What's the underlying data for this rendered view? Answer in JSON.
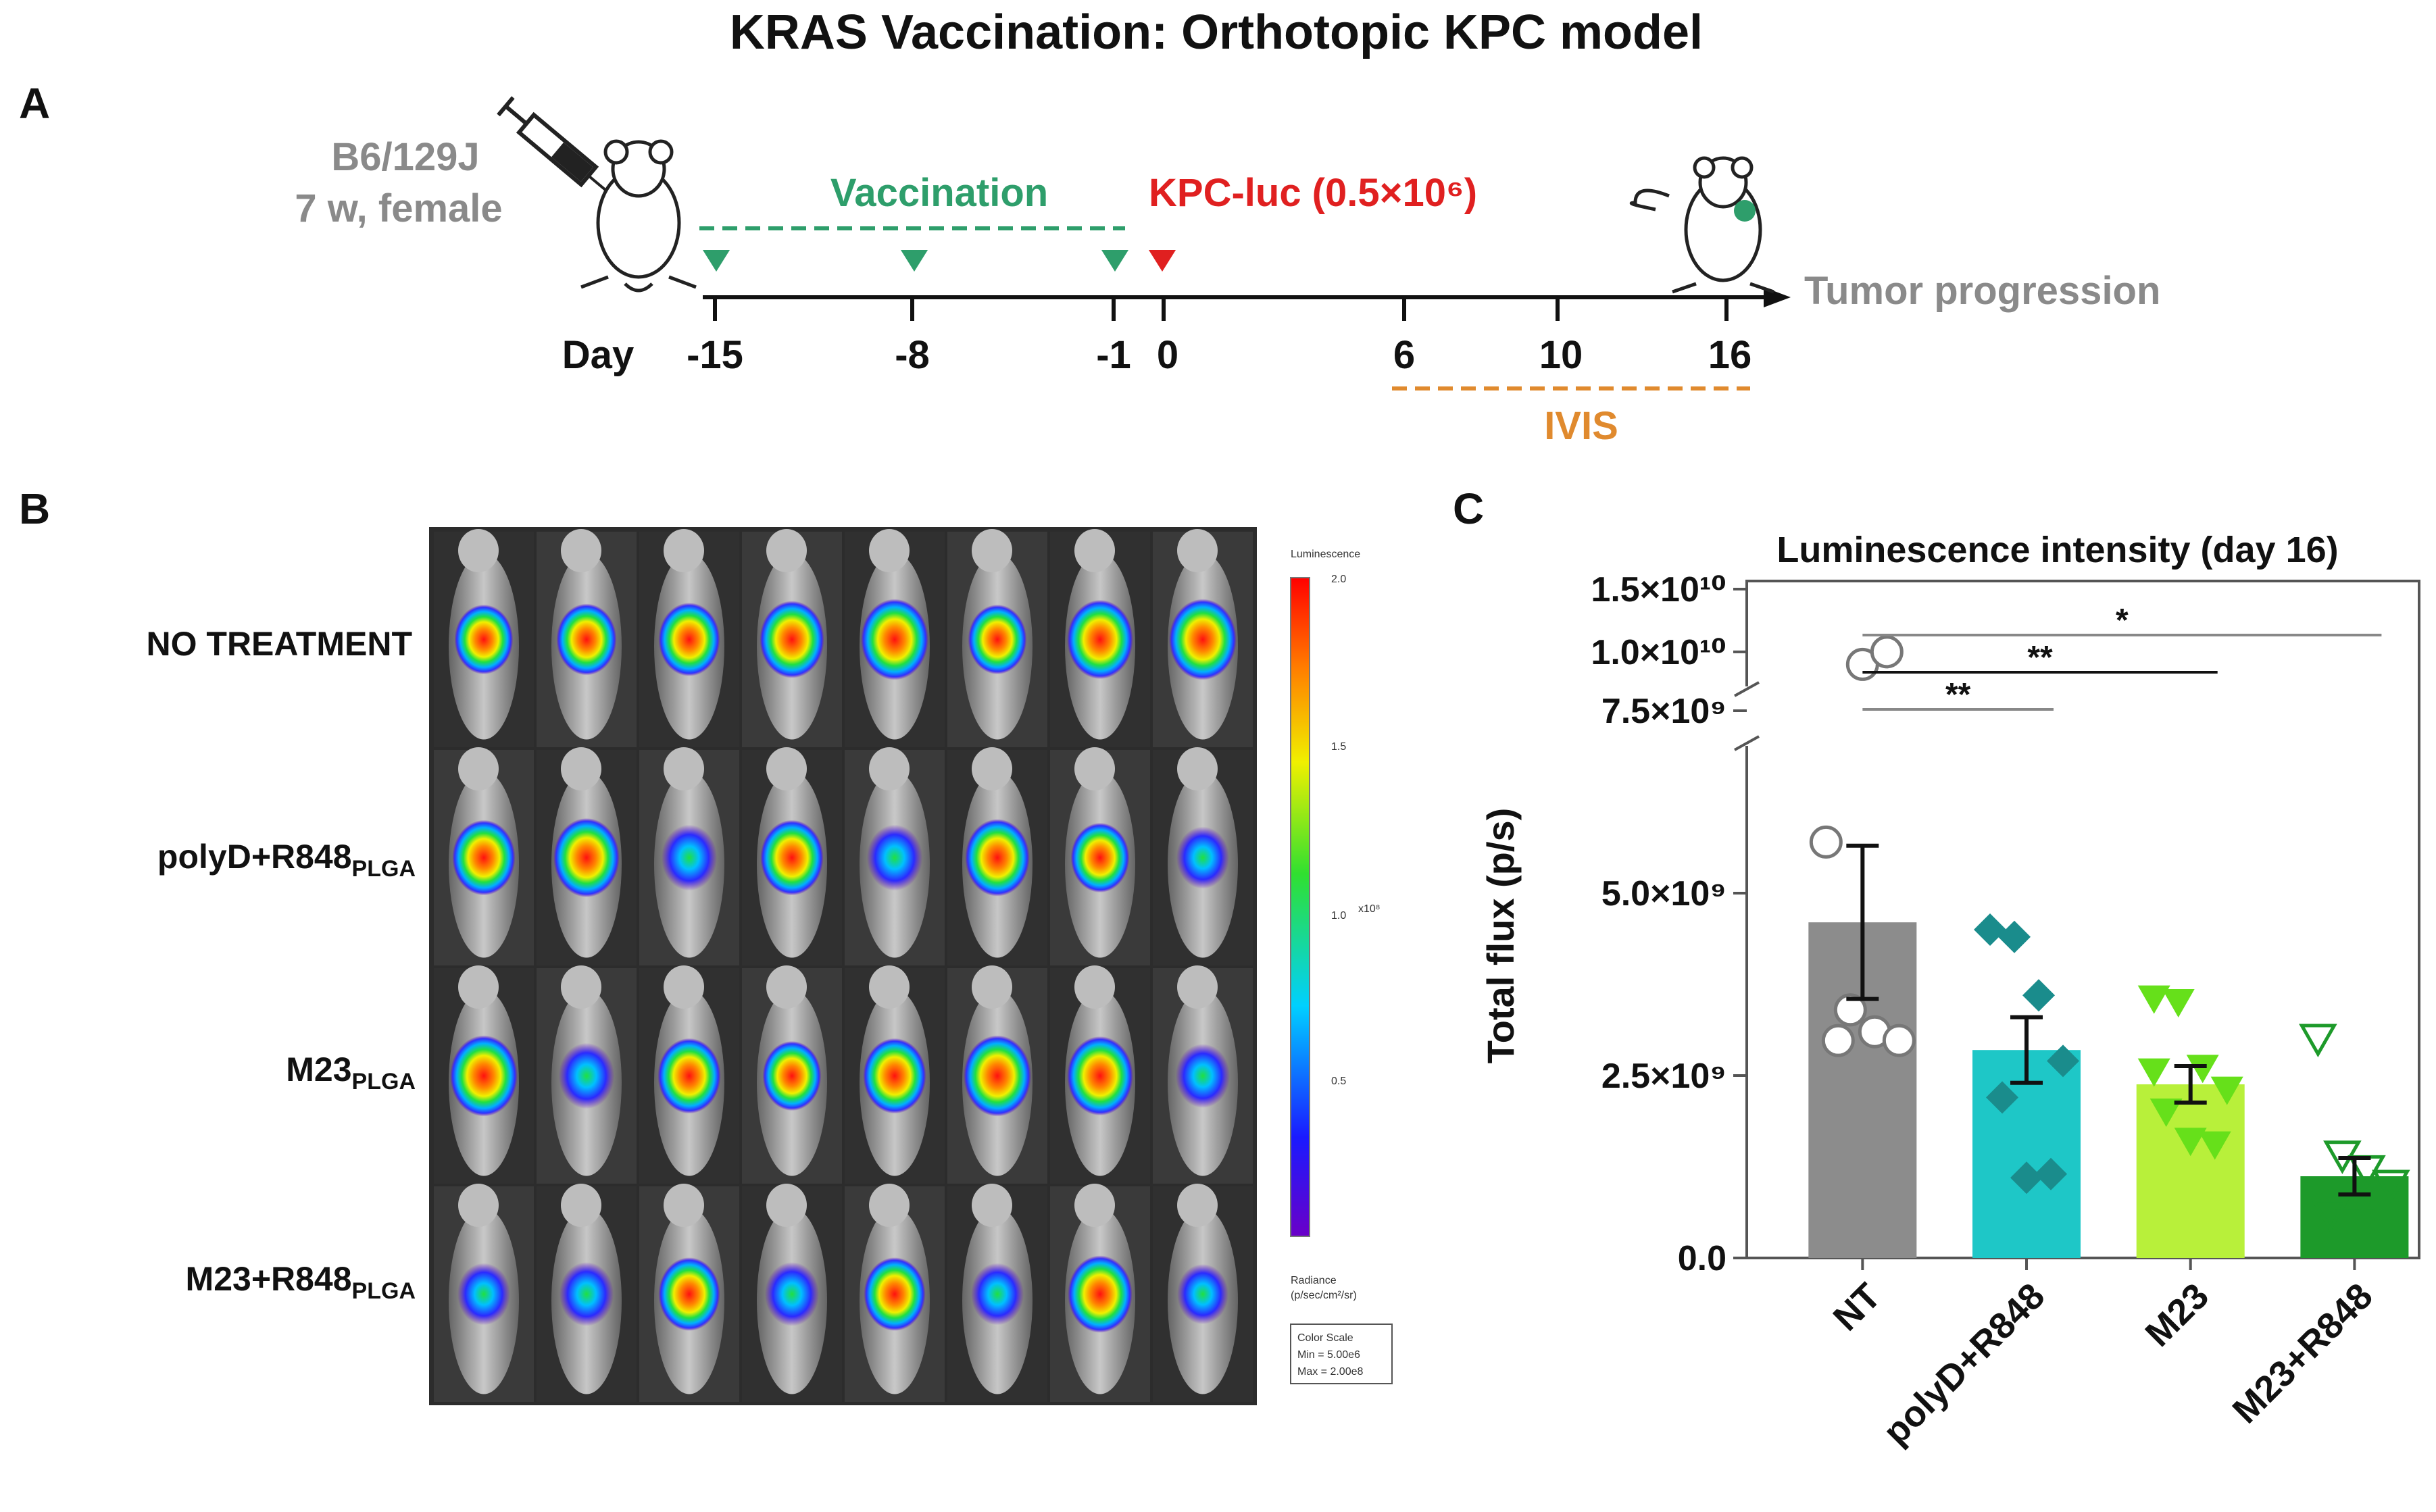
{
  "figure": {
    "title": "KRAS Vaccination: Orthotopic KPC model"
  },
  "panel_a": {
    "label": "A",
    "strain": "B6/129J",
    "age_sex": "7 w, female",
    "vaccination_label": "Vaccination",
    "injection_label": "KPC-luc (0.5×10⁶)",
    "day_label": "Day",
    "days": [
      "-15",
      "-8",
      "-1",
      "0",
      "6",
      "10",
      "16"
    ],
    "outcome_label": "Tumor progression",
    "imaging_label": "IVIS",
    "colors": {
      "vaccination": "#2e9e6b",
      "injection": "#e02020",
      "imaging": "#e08a2e",
      "gray": "#8a8a8a"
    }
  },
  "panel_b": {
    "label": "B",
    "rows": [
      {
        "name": "NO TREATMENT",
        "sub": ""
      },
      {
        "name": "polyD+R848",
        "sub": "PLGA"
      },
      {
        "name": "M23",
        "sub": "PLGA"
      },
      {
        "name": "M23+R848",
        "sub": "PLGA"
      }
    ],
    "colorbar": {
      "title": "Luminescence",
      "ticks": [
        "2.0",
        "1.5",
        "1.0",
        "0.5"
      ],
      "top_tick": "2.0",
      "multiplier": "x10⁸",
      "unit_line1": "Radiance",
      "unit_line2": "(p/sec/cm²/sr)",
      "scale_line1": "Color Scale",
      "scale_line2": "Min = 5.00e6",
      "scale_line3": "Max = 2.00e8"
    }
  },
  "panel_c": {
    "label": "C",
    "significance": [
      "*",
      "**",
      "**"
    ]
  },
  "chart_data": {
    "type": "bar",
    "title": "Luminescence intensity (day 16)",
    "ylabel": "Total flux (p/s)",
    "xlabel": "",
    "categories": [
      "NT",
      "polyD+R848",
      "M23",
      "M23+R848"
    ],
    "colors": [
      "#8c8c8c",
      "#1ec7c7",
      "#b8f03a",
      "#1d9a2a"
    ],
    "markers": [
      "circle",
      "diamond",
      "triangle-down",
      "triangle-down-open"
    ],
    "values": [
      4600000000.0,
      2850000000.0,
      2380000000.0,
      1120000000.0
    ],
    "sem": [
      1050000000.0,
      450000000.0,
      250000000.0,
      250000000.0
    ],
    "points": [
      [
        5700000000.0,
        3400000000.0,
        3100000000.0,
        2980000000.0,
        2980000000.0,
        9000000000.0,
        10000000000.0
      ],
      [
        4500000000.0,
        4400000000.0,
        3600000000.0,
        2700000000.0,
        2200000000.0,
        1100000000.0,
        1150000000.0
      ],
      [
        3550000000.0,
        3500000000.0,
        2600000000.0,
        2300000000.0,
        2000000000.0,
        1600000000.0,
        1550000000.0,
        2550000000.0
      ],
      [
        3000000000.0,
        1400000000.0,
        1200000000.0,
        1000000000.0,
        600000000.0,
        450000000.0,
        500000000.0
      ]
    ],
    "y_ticks": [
      {
        "value": 0,
        "label": "0.0"
      },
      {
        "value": 2500000000.0,
        "label": "2.5×10⁹"
      },
      {
        "value": 5000000000.0,
        "label": "5.0×10⁹"
      },
      {
        "value": 7500000000.0,
        "label": "7.5×10⁹"
      },
      {
        "value": 10000000000.0,
        "label": "1.0×10¹⁰"
      },
      {
        "value": 15000000000.0,
        "label": "1.5×10¹⁰"
      }
    ],
    "ylim": [
      0,
      15000000000.0
    ],
    "axis_break": [
      7500000000.0,
      8000000000.0
    ],
    "comparisons": [
      {
        "from": "NT",
        "to": "M23+R848",
        "label": "*"
      },
      {
        "from": "NT",
        "to": "M23",
        "label": "**"
      },
      {
        "from": "NT",
        "to": "polyD+R848",
        "label": "**"
      }
    ],
    "grid": false,
    "legend": "none"
  }
}
